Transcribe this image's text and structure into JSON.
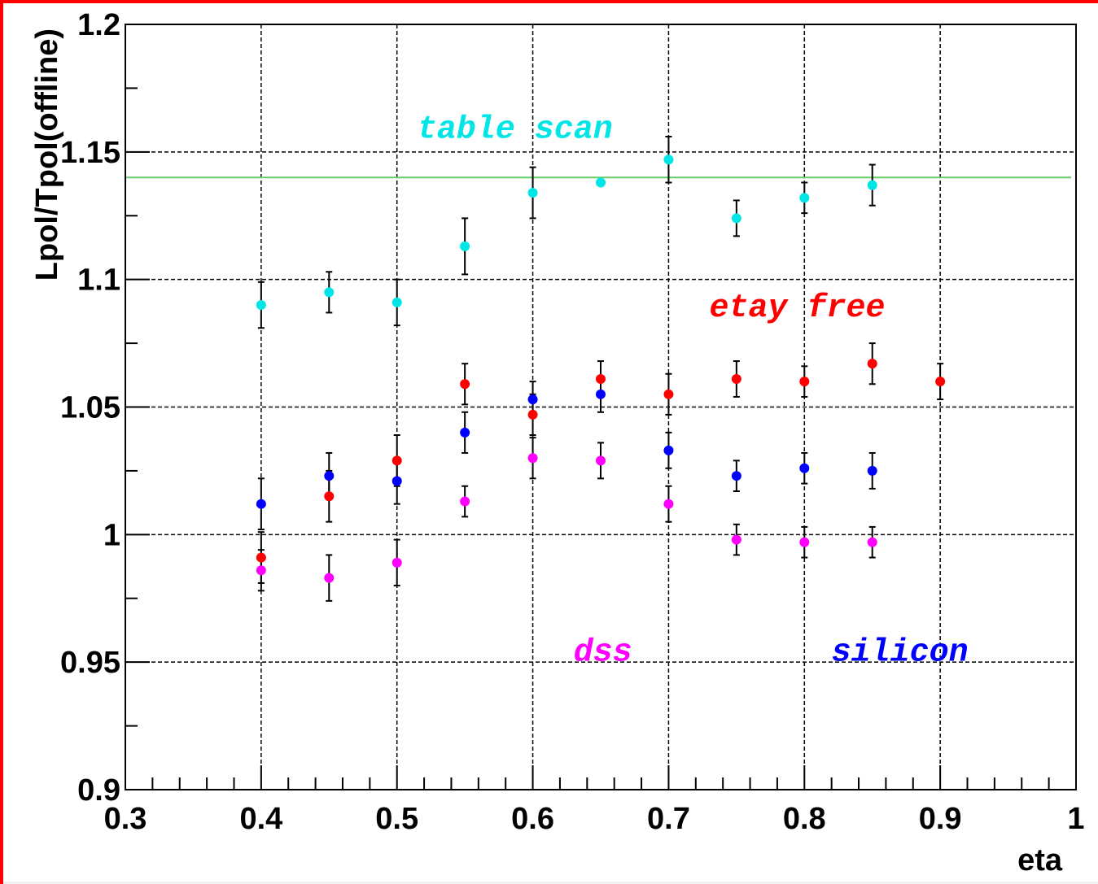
{
  "chart_data": {
    "type": "scatter",
    "title": "",
    "xlabel": "eta",
    "ylabel": "Lpol/Tpol(offline)",
    "xlim": [
      0.3,
      1.0
    ],
    "ylim": [
      0.9,
      1.2
    ],
    "grid": true,
    "x_ticks": [
      "0.3",
      "0.4",
      "0.5",
      "0.6",
      "0.7",
      "0.8",
      "0.9",
      "1"
    ],
    "y_ticks": [
      "0.9",
      "0.95",
      "1",
      "1.05",
      "1.1",
      "1.15",
      "1.2"
    ],
    "reference_line": {
      "y": 1.14,
      "color": "#66cc66"
    },
    "series": [
      {
        "name": "table scan",
        "color": "#00e5e5",
        "x": [
          0.4,
          0.45,
          0.5,
          0.55,
          0.6,
          0.65,
          0.7,
          0.75,
          0.8,
          0.85
        ],
        "y": [
          1.09,
          1.095,
          1.091,
          1.113,
          1.134,
          1.138,
          1.147,
          1.124,
          1.132,
          1.137
        ],
        "err": [
          0.009,
          0.008,
          0.009,
          0.011,
          0.01,
          0.0,
          0.009,
          0.007,
          0.006,
          0.008
        ]
      },
      {
        "name": "etay free",
        "color": "#ff0000",
        "x": [
          0.4,
          0.45,
          0.5,
          0.55,
          0.6,
          0.65,
          0.7,
          0.75,
          0.8,
          0.85,
          0.9
        ],
        "y": [
          0.991,
          1.015,
          1.029,
          1.059,
          1.047,
          1.061,
          1.055,
          1.061,
          1.06,
          1.067,
          1.06
        ],
        "err": [
          0.01,
          0.01,
          0.01,
          0.008,
          0.008,
          0.007,
          0.008,
          0.007,
          0.006,
          0.008,
          0.007
        ]
      },
      {
        "name": "silicon",
        "color": "#0000ff",
        "x": [
          0.4,
          0.45,
          0.5,
          0.55,
          0.6,
          0.65,
          0.7,
          0.75,
          0.8,
          0.85
        ],
        "y": [
          1.012,
          1.023,
          1.021,
          1.04,
          1.053,
          1.055,
          1.033,
          1.023,
          1.026,
          1.025
        ],
        "err": [
          0.01,
          0.009,
          0.009,
          0.008,
          0.007,
          0.007,
          0.007,
          0.006,
          0.006,
          0.007
        ]
      },
      {
        "name": "dss",
        "color": "#ff00ff",
        "x": [
          0.4,
          0.45,
          0.5,
          0.55,
          0.6,
          0.65,
          0.7,
          0.75,
          0.8,
          0.85
        ],
        "y": [
          0.986,
          0.983,
          0.989,
          1.013,
          1.03,
          1.029,
          1.012,
          0.998,
          0.997,
          0.997
        ],
        "err": [
          0.008,
          0.009,
          0.009,
          0.006,
          0.008,
          0.007,
          0.007,
          0.006,
          0.006,
          0.006
        ]
      }
    ],
    "annotations": [
      {
        "text": "table scan",
        "color": "#00e5e5",
        "x": 0.515,
        "y": 1.16
      },
      {
        "text": "etay free",
        "color": "#ff0000",
        "x": 0.73,
        "y": 1.09
      },
      {
        "text": "dss",
        "color": "#ff00ff",
        "x": 0.63,
        "y": 0.955
      },
      {
        "text": "silicon",
        "color": "#0000ff",
        "x": 0.82,
        "y": 0.955
      }
    ]
  }
}
